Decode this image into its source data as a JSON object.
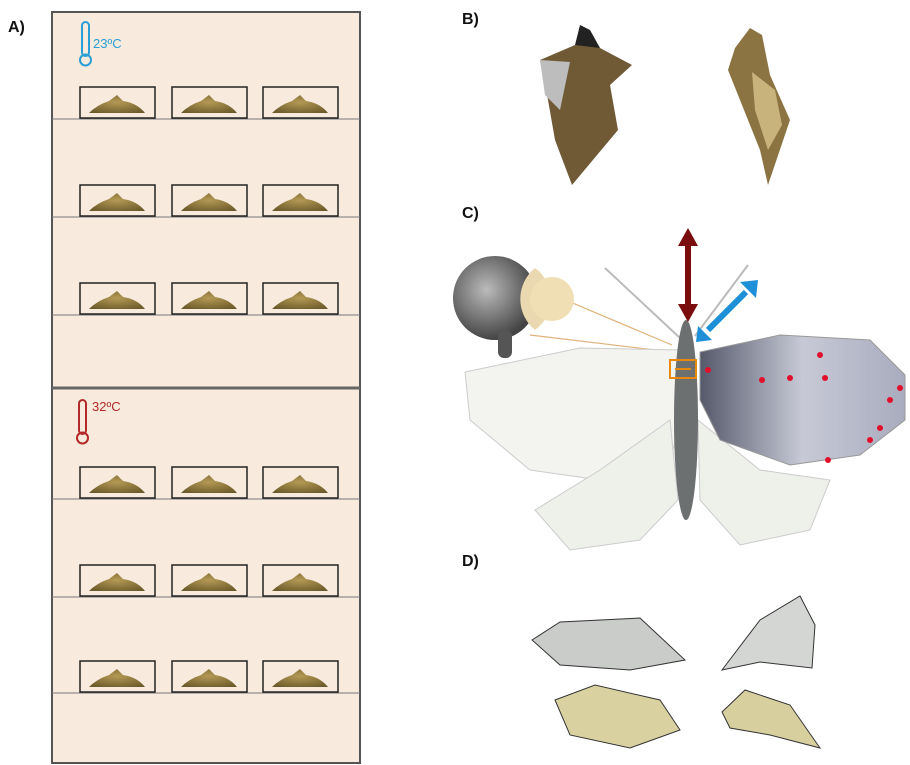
{
  "panels": [
    {
      "label": "A)"
    },
    {
      "label": "B)"
    },
    {
      "label": "C)"
    },
    {
      "label": "D)"
    }
  ],
  "chambers": [
    {
      "temperature": "23ºC"
    },
    {
      "temperature": "32ºC"
    }
  ]
}
